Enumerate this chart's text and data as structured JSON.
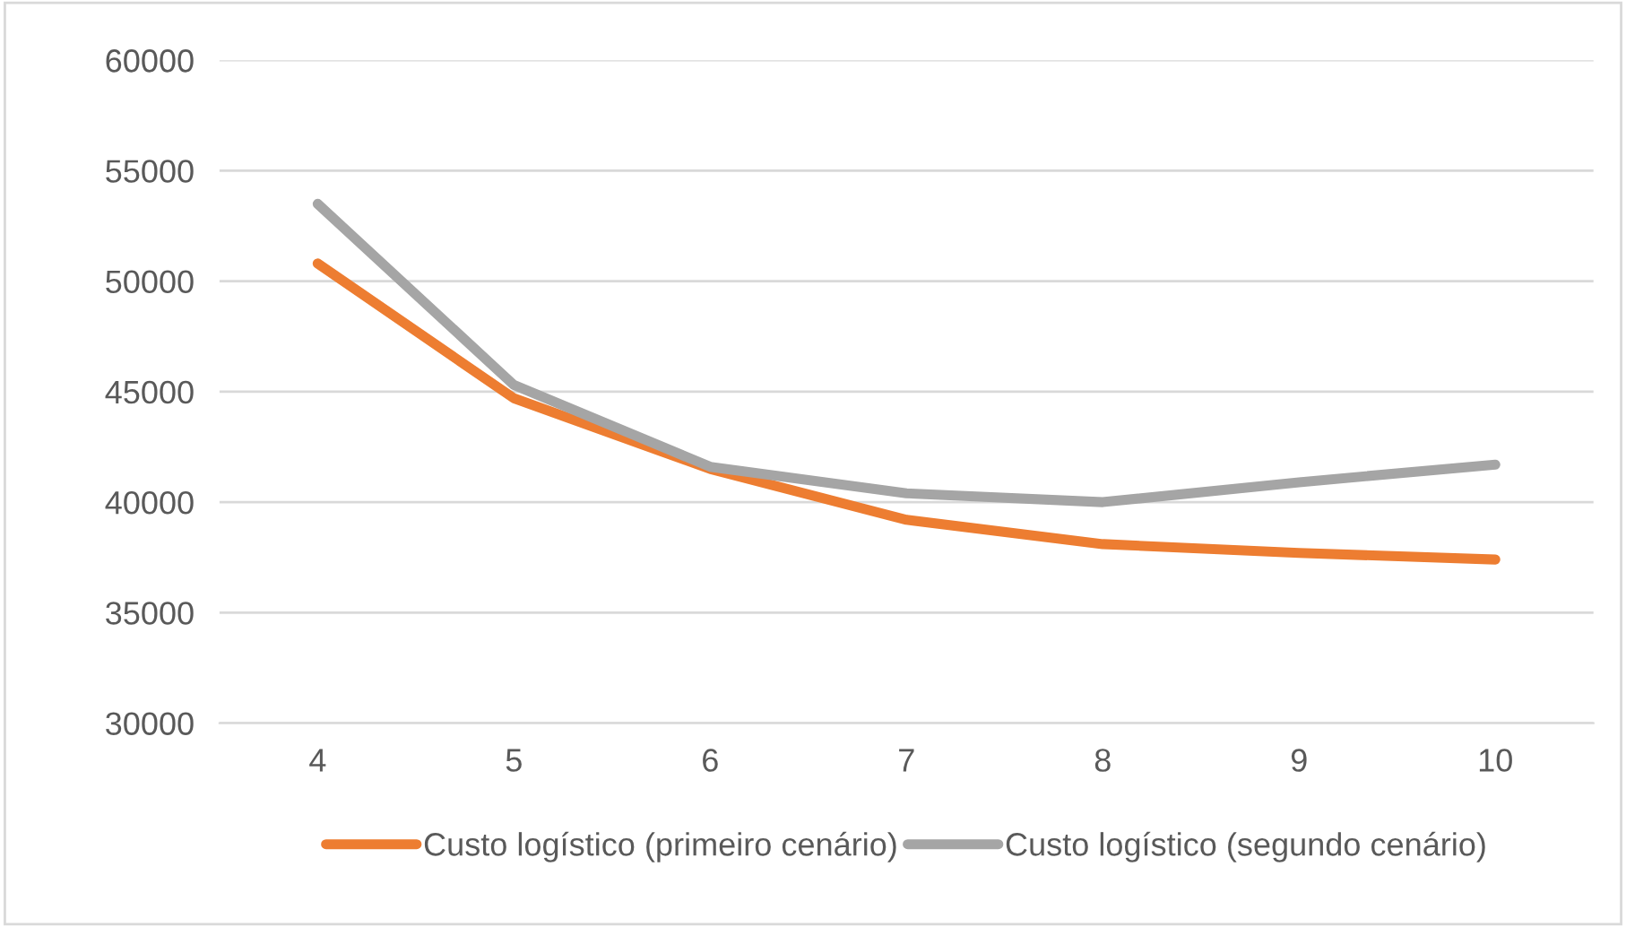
{
  "chart_data": {
    "type": "line",
    "categories": [
      "4",
      "5",
      "6",
      "7",
      "8",
      "9",
      "10"
    ],
    "series": [
      {
        "name": "Custo logístico (primeiro cenário)",
        "color": "#ed7d31",
        "values": [
          50800,
          44700,
          41500,
          39200,
          38100,
          37700,
          37400
        ]
      },
      {
        "name": "Custo logístico (segundo cenário)",
        "color": "#a5a5a5",
        "values": [
          53500,
          45300,
          41600,
          40400,
          40000,
          40900,
          41700
        ]
      }
    ],
    "ylim": [
      30000,
      60000
    ],
    "yticks": [
      30000,
      35000,
      40000,
      45000,
      50000,
      55000,
      60000
    ],
    "grid": "y",
    "legend": "bottom",
    "marker": "none",
    "line_style": "solid"
  }
}
